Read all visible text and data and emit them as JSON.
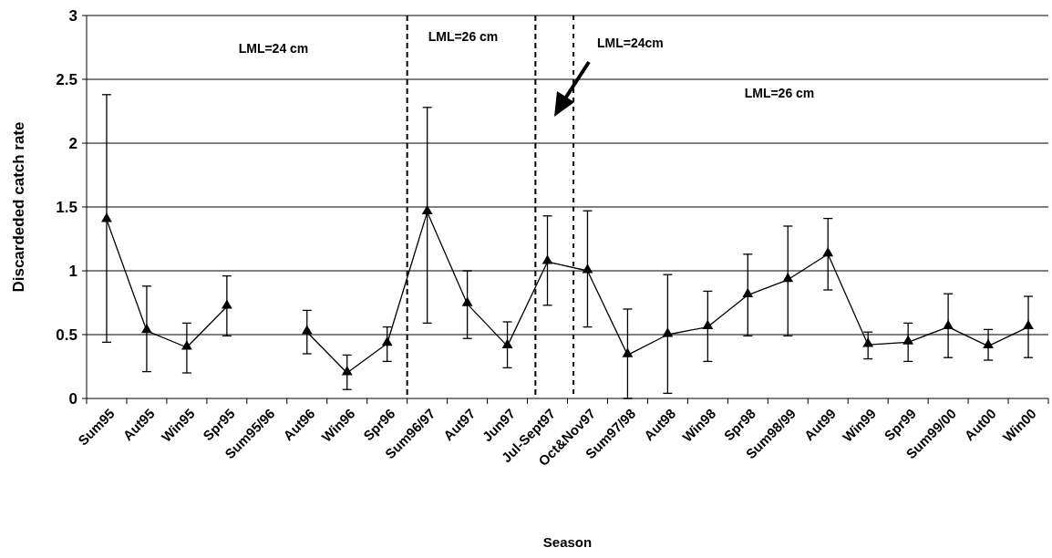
{
  "chart_data": {
    "type": "line",
    "xlabel": "Season",
    "ylabel": "Discardeded catch rate",
    "categories": [
      "Sum95",
      "Aut95",
      "Win95",
      "Spr95",
      "Sum95/96",
      "Aut96",
      "Win96",
      "Spr96",
      "Sum96/97",
      "Aut97",
      "Jun97",
      "Jul-Sept97",
      "Oct&Nov97",
      "Sum97/98",
      "Aut98",
      "Win98",
      "Spr98",
      "Sum98/99",
      "Aut99",
      "Win99",
      "Spr99",
      "Sum99/00",
      "Aut00",
      "Win00"
    ],
    "series": [
      {
        "color": "#000000",
        "values": [
          1.4,
          0.53,
          0.4,
          0.72,
          null,
          0.52,
          0.2,
          0.43,
          1.46,
          0.74,
          0.41,
          1.07,
          1.0,
          0.34,
          0.5,
          0.56,
          0.81,
          0.93,
          1.13,
          0.42,
          0.44,
          0.56,
          0.41,
          0.56
        ],
        "errors": [
          [
            0.44,
            2.38
          ],
          [
            0.21,
            0.88
          ],
          [
            0.2,
            0.59
          ],
          [
            0.49,
            0.96
          ],
          null,
          [
            0.35,
            0.69
          ],
          [
            0.07,
            0.34
          ],
          [
            0.29,
            0.56
          ],
          [
            0.59,
            2.28
          ],
          [
            0.47,
            1.0
          ],
          [
            0.24,
            0.6
          ],
          [
            0.73,
            1.43
          ],
          [
            0.56,
            1.47
          ],
          [
            0.0,
            0.7
          ],
          [
            0.04,
            0.97
          ],
          [
            0.29,
            0.84
          ],
          [
            0.49,
            1.13
          ],
          [
            0.49,
            1.35
          ],
          [
            0.85,
            1.41
          ],
          [
            0.31,
            0.52
          ],
          [
            0.29,
            0.59
          ],
          [
            0.32,
            0.82
          ],
          [
            0.3,
            0.54
          ],
          [
            0.32,
            0.8
          ]
        ]
      }
    ],
    "ylim": [
      0,
      3
    ],
    "yticks": [
      0,
      0.5,
      1,
      1.5,
      2,
      2.5,
      3
    ],
    "grid": "y",
    "marker": "triangle",
    "line_style": "solid",
    "annotations": [
      "LML=24 cm",
      "LML=26 cm",
      "LML=24cm",
      "LML=26 cm"
    ]
  }
}
